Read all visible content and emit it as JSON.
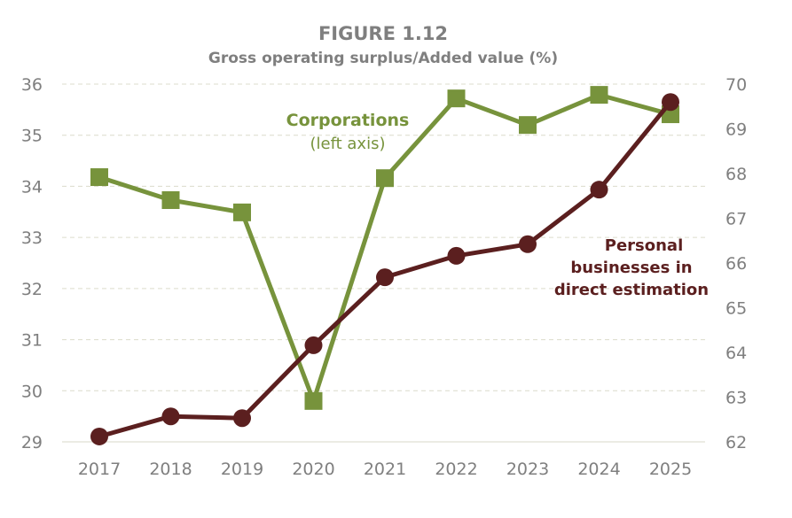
{
  "chart_data": {
    "type": "line",
    "title": "FIGURE 1.12",
    "subtitle": "Gross operating surplus/Added value (%)",
    "categories": [
      "2017",
      "2018",
      "2019",
      "2020",
      "2021",
      "2022",
      "2023",
      "2024",
      "2025"
    ],
    "left_axis": {
      "ylim": [
        29,
        36
      ],
      "ticks": [
        29,
        30,
        31,
        32,
        33,
        34,
        35,
        36
      ]
    },
    "right_axis": {
      "ylim": [
        62,
        70
      ],
      "ticks": [
        62,
        63,
        64,
        65,
        66,
        67,
        68,
        69,
        70
      ]
    },
    "grid": "horizontal dashed",
    "series": [
      {
        "name": "Corporations",
        "name_note": "(left axis)",
        "axis": "left",
        "marker": "square",
        "color": "#77933c",
        "values": [
          34.18,
          33.73,
          33.49,
          29.8,
          34.16,
          35.72,
          35.2,
          35.79,
          35.41
        ]
      },
      {
        "name_lines": [
          "Personal",
          "businesses in",
          "direct estimation"
        ],
        "axis": "right",
        "marker": "circle",
        "color": "#5b1f1f",
        "values": [
          62.12,
          62.57,
          62.53,
          64.16,
          65.68,
          66.16,
          66.42,
          67.64,
          69.6
        ]
      }
    ]
  }
}
